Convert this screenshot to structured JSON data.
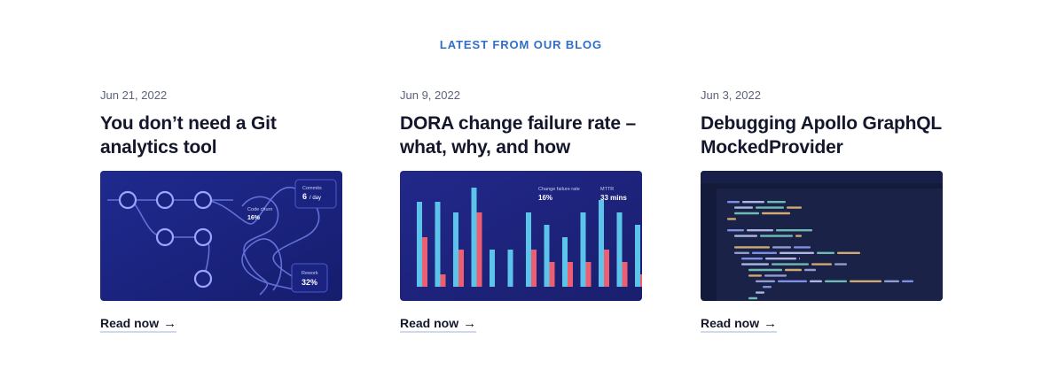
{
  "section": {
    "heading": "LATEST FROM OUR BLOG"
  },
  "colors": {
    "accent": "#2f6fcb",
    "text": "#14172b",
    "muted": "#5d6278"
  },
  "posts": [
    {
      "date": "Jun 21, 2022",
      "title": "You don’t need a Git analytics tool",
      "read_label": "Read now",
      "thumb": {
        "stat1_label": "Commits",
        "stat1_value": "6",
        "stat1_unit": "/ day",
        "stat2_label": "Code churn",
        "stat2_value": "16%",
        "stat3_label": "Rework",
        "stat3_value": "32%"
      }
    },
    {
      "date": "Jun 9, 2022",
      "title": "DORA change failure rate – what, why, and how",
      "read_label": "Read now",
      "thumb": {
        "stat1_label": "Change failure rate",
        "stat1_value": "16%",
        "stat2_label": "MTTR",
        "stat2_value": "33 mins"
      }
    },
    {
      "date": "Jun 3, 2022",
      "title": "Debugging Apollo GraphQL MockedProvider",
      "read_label": "Read now"
    }
  ]
}
